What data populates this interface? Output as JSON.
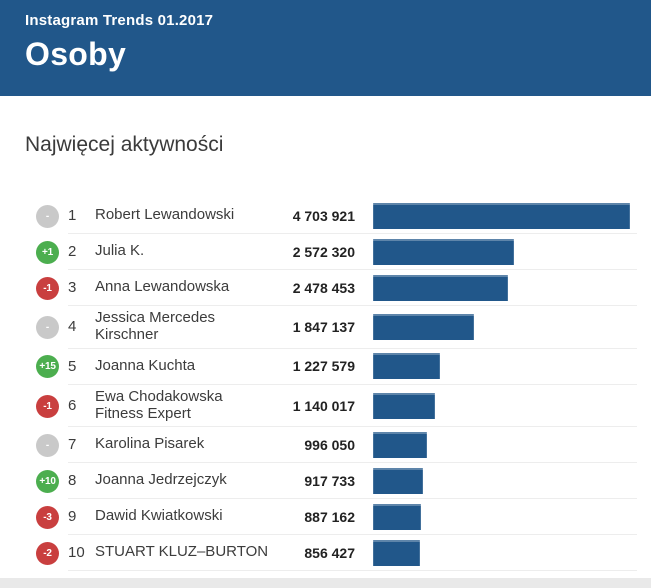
{
  "header": {
    "subtitle": "Instagram Trends 01.2017",
    "title": "Osoby",
    "background_color": "#21578a"
  },
  "section": {
    "heading": "Najwięcej aktywności"
  },
  "badge_colors": {
    "up": "#4cae4f",
    "down": "#c93f3f",
    "neutral": "#c9c9c9"
  },
  "chart_data": {
    "type": "bar",
    "orientation": "horizontal",
    "title": "Najwięcej aktywności",
    "bar_color": "#21578a",
    "max_value": 4703921,
    "categories": [
      "Robert Lewandowski",
      "Julia K.",
      "Anna Lewandowska",
      "Jessica Mercedes Kirschner",
      "Joanna Kuchta",
      "Ewa Chodakowska Fitness Expert",
      "Karolina Pisarek",
      "Joanna Jedrzejczyk",
      "Dawid Kwiatkowski",
      "STUART KLUZ–BURTON"
    ],
    "values": [
      4703921,
      2572320,
      2478453,
      1847137,
      1227579,
      1140017,
      996050,
      917733,
      887162,
      856427
    ],
    "rows": [
      {
        "rank": "1",
        "change": "-",
        "direction": "neutral",
        "name": "Robert Lewandowski",
        "value": 4703921,
        "value_label": "4 703 921"
      },
      {
        "rank": "2",
        "change": "+1",
        "direction": "up",
        "name": "Julia K.",
        "value": 2572320,
        "value_label": "2 572 320"
      },
      {
        "rank": "3",
        "change": "-1",
        "direction": "down",
        "name": "Anna Lewandowska",
        "value": 2478453,
        "value_label": "2 478 453"
      },
      {
        "rank": "4",
        "change": "-",
        "direction": "neutral",
        "name": "Jessica Mercedes Kirschner",
        "value": 1847137,
        "value_label": "1 847 137"
      },
      {
        "rank": "5",
        "change": "+15",
        "direction": "up",
        "name": "Joanna Kuchta",
        "value": 1227579,
        "value_label": "1 227 579"
      },
      {
        "rank": "6",
        "change": "-1",
        "direction": "down",
        "name": "Ewa Chodakowska Fitness Expert",
        "value": 1140017,
        "value_label": "1 140 017"
      },
      {
        "rank": "7",
        "change": "-",
        "direction": "neutral",
        "name": "Karolina Pisarek",
        "value": 996050,
        "value_label": "996 050"
      },
      {
        "rank": "8",
        "change": "+10",
        "direction": "up",
        "name": "Joanna Jedrzejczyk",
        "value": 917733,
        "value_label": "917 733"
      },
      {
        "rank": "9",
        "change": "-3",
        "direction": "down",
        "name": "Dawid Kwiatkowski",
        "value": 887162,
        "value_label": "887 162"
      },
      {
        "rank": "10",
        "change": "-2",
        "direction": "down",
        "name": "STUART KLUZ–BURTON",
        "value": 856427,
        "value_label": "856 427"
      }
    ]
  }
}
